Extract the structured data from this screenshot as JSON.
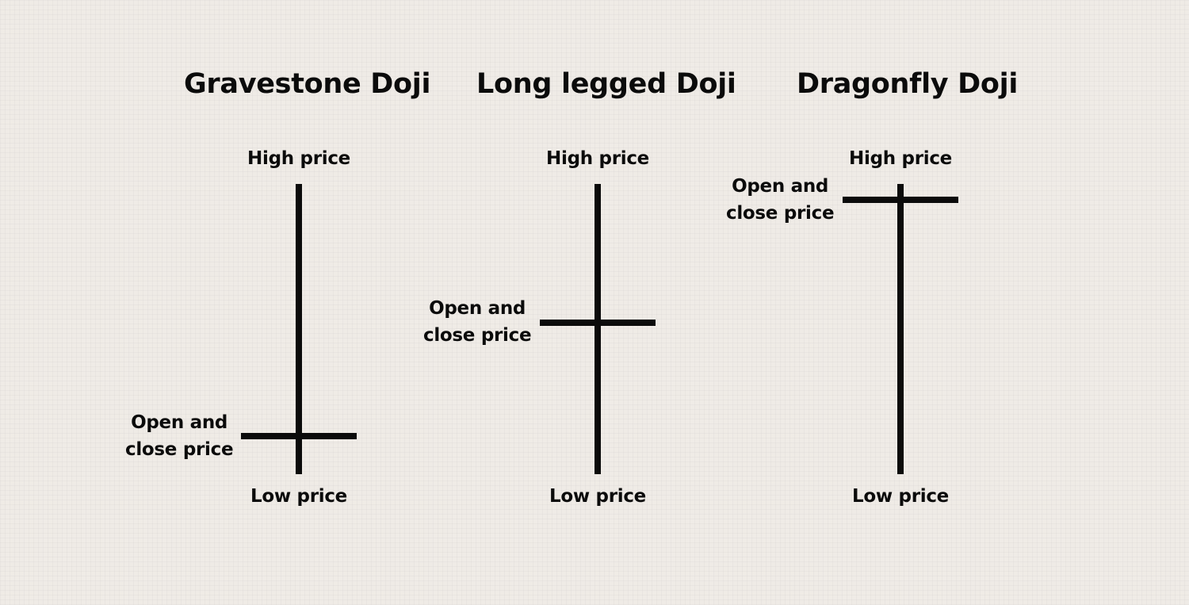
{
  "patterns": [
    {
      "title": "Gravestone Doji",
      "high_label": "High price",
      "open_close_label": [
        "Open and",
        "close price"
      ],
      "low_label": "Low price"
    },
    {
      "title": "Long legged Doji",
      "high_label": "High price",
      "open_close_label": [
        "Open and",
        "close price"
      ],
      "low_label": "Low price"
    },
    {
      "title": "Dragonfly Doji",
      "high_label": "High price",
      "open_close_label": [
        "Open and",
        "close price"
      ],
      "low_label": "Low price"
    }
  ],
  "colors": {
    "background": "#efebe6",
    "ink": "#0b0b0b"
  }
}
